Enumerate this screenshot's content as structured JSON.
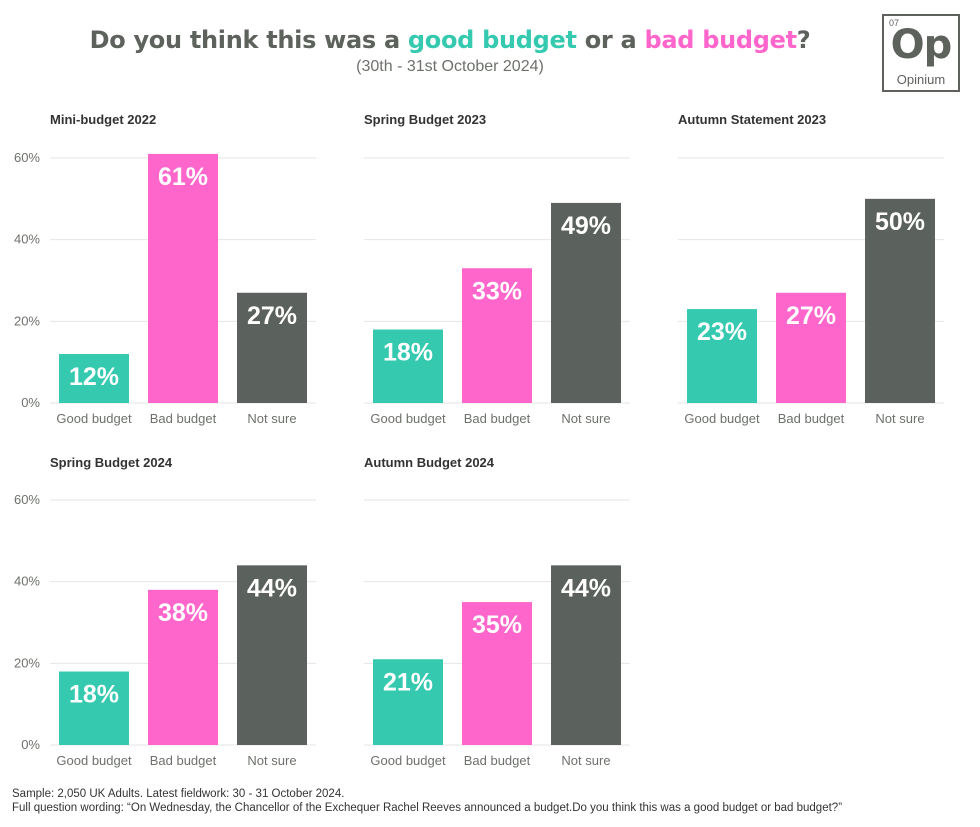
{
  "title": {
    "parts": [
      {
        "text": "Do you think this was a ",
        "color": "#5d625c"
      },
      {
        "text": "good budget",
        "color": "#35c9b0"
      },
      {
        "text": " or a ",
        "color": "#5d625c"
      },
      {
        "text": "bad budget",
        "color": "#ff66cc"
      },
      {
        "text": "?",
        "color": "#5d625c"
      }
    ]
  },
  "subtitle": "(30th - 31st October 2024)",
  "logo": {
    "number": "07",
    "symbol": "Op",
    "name": "Opinium"
  },
  "colors": {
    "good": "#35c9b0",
    "bad": "#ff66cc",
    "notsure": "#5b615c",
    "grid": "#e6e6e6",
    "tick": "#6d716b"
  },
  "chart_data": [
    {
      "type": "bar",
      "title": "Mini-budget 2022",
      "categories": [
        "Good budget",
        "Bad budget",
        "Not sure"
      ],
      "values": [
        12,
        61,
        27
      ],
      "labels": [
        "12%",
        "61%",
        "27%"
      ],
      "ylim": [
        0,
        60
      ],
      "yticks": [
        "0%",
        "20%",
        "40%",
        "60%"
      ],
      "show_yticks": true,
      "grid": true
    },
    {
      "type": "bar",
      "title": "Spring Budget 2023",
      "categories": [
        "Good budget",
        "Bad budget",
        "Not sure"
      ],
      "values": [
        18,
        33,
        49
      ],
      "labels": [
        "18%",
        "33%",
        "49%"
      ],
      "ylim": [
        0,
        60
      ],
      "show_yticks": false,
      "grid": true
    },
    {
      "type": "bar",
      "title": "Autumn Statement 2023",
      "categories": [
        "Good budget",
        "Bad budget",
        "Not sure"
      ],
      "values": [
        23,
        27,
        50
      ],
      "labels": [
        "23%",
        "27%",
        "50%"
      ],
      "ylim": [
        0,
        60
      ],
      "show_yticks": false,
      "grid": true
    },
    {
      "type": "bar",
      "title": "Spring Budget 2024",
      "categories": [
        "Good budget",
        "Bad budget",
        "Not sure"
      ],
      "values": [
        18,
        38,
        44
      ],
      "labels": [
        "18%",
        "38%",
        "44%"
      ],
      "ylim": [
        0,
        60
      ],
      "yticks": [
        "0%",
        "20%",
        "40%",
        "60%"
      ],
      "show_yticks": true,
      "grid": true
    },
    {
      "type": "bar",
      "title": "Autumn Budget 2024",
      "categories": [
        "Good budget",
        "Bad budget",
        "Not sure"
      ],
      "values": [
        21,
        35,
        44
      ],
      "labels": [
        "21%",
        "35%",
        "44%"
      ],
      "ylim": [
        0,
        60
      ],
      "show_yticks": false,
      "grid": true
    }
  ],
  "footer": {
    "line1": "Sample: 2,050 UK Adults. Latest fieldwork: 30 - 31 October 2024.",
    "line2": "Full question wording: “On Wednesday, the Chancellor of the Exchequer Rachel Reeves announced a budget.Do you think this was a good budget or bad budget?”"
  }
}
